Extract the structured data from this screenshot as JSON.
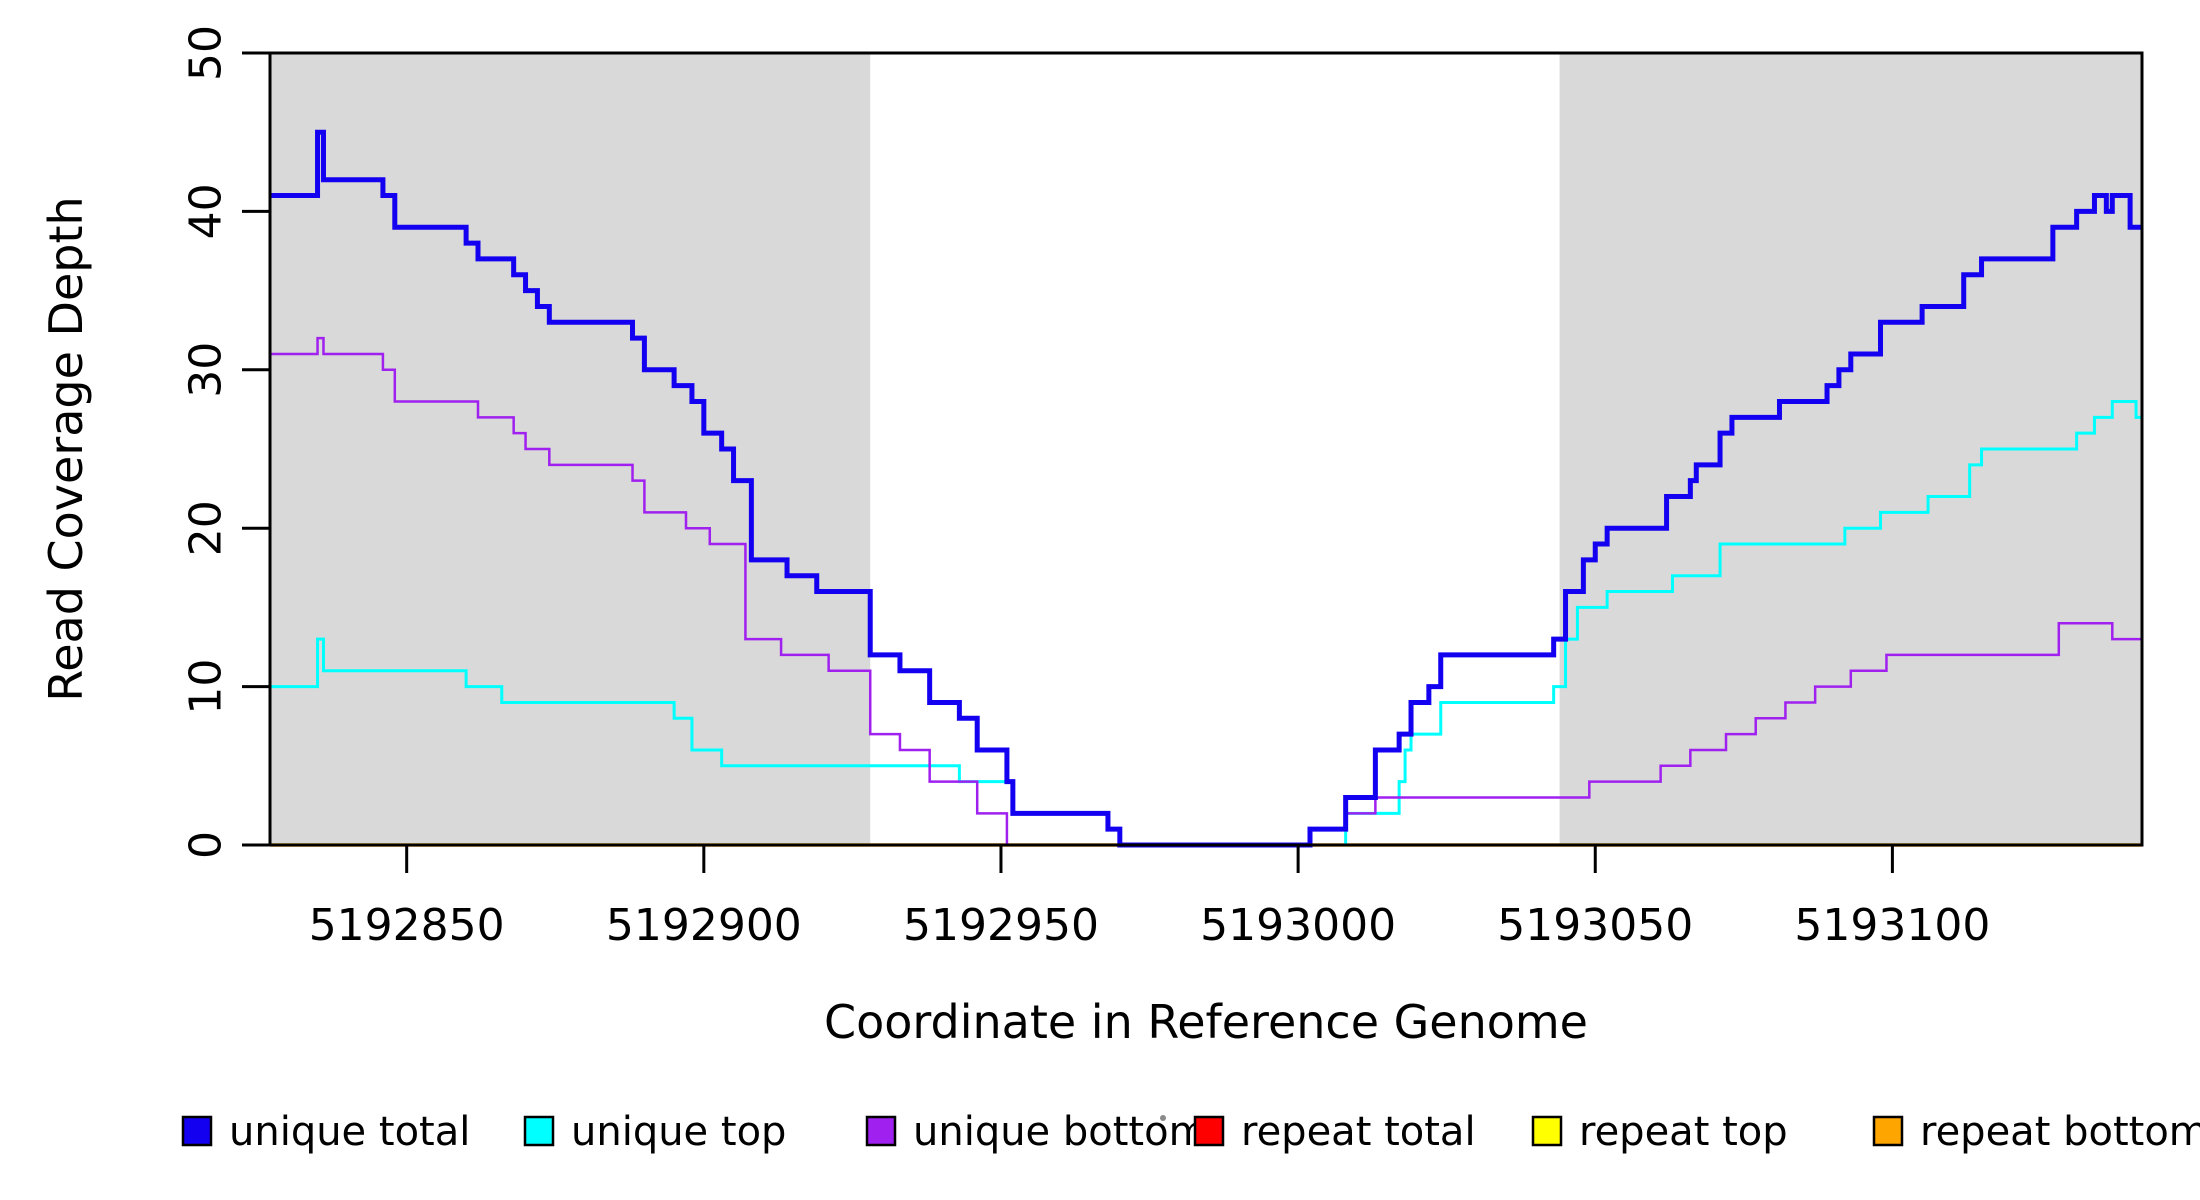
{
  "chart_data": {
    "type": "step-line",
    "title": "",
    "xlabel": "Coordinate in Reference Genome",
    "ylabel": "Read Coverage Depth",
    "x_range": [
      5192827,
      5193142
    ],
    "y_range": [
      0,
      50
    ],
    "x_ticks": [
      5192850,
      5192900,
      5192950,
      5193000,
      5193050,
      5193100
    ],
    "y_ticks": [
      0,
      10,
      20,
      30,
      40,
      50
    ],
    "grid": false,
    "legend_position": "bottom",
    "background_color": "#ffffff",
    "shaded_regions": [
      {
        "x_from": 5192827,
        "x_to": 5192928,
        "color": "#d9d9d9"
      },
      {
        "x_from": 5193044,
        "x_to": 5193142,
        "color": "#d9d9d9"
      }
    ],
    "series": [
      {
        "name": "repeat total",
        "color": "#ff0000",
        "line_width": 2.5,
        "points": [
          [
            5192827,
            0
          ]
        ]
      },
      {
        "name": "repeat top",
        "color": "#ffff00",
        "line_width": 2.5,
        "points": [
          [
            5192827,
            0
          ]
        ]
      },
      {
        "name": "repeat bottom",
        "color": "#ffa500",
        "line_width": 3.5,
        "points": [
          [
            5192827,
            0
          ]
        ]
      },
      {
        "name": "unique top",
        "color": "#00ffff",
        "line_width": 3,
        "points": [
          [
            5192827,
            10
          ],
          [
            5192835,
            13
          ],
          [
            5192836,
            11
          ],
          [
            5192860,
            10
          ],
          [
            5192866,
            9
          ],
          [
            5192895,
            8
          ],
          [
            5192898,
            6
          ],
          [
            5192903,
            5
          ],
          [
            5192943,
            4
          ],
          [
            5192952,
            2
          ],
          [
            5192968,
            1
          ],
          [
            5192970,
            0
          ],
          [
            5193008,
            2
          ],
          [
            5193017,
            4
          ],
          [
            5193018,
            6
          ],
          [
            5193019,
            7
          ],
          [
            5193024,
            9
          ],
          [
            5193043,
            10
          ],
          [
            5193045,
            13
          ],
          [
            5193047,
            15
          ],
          [
            5193052,
            16
          ],
          [
            5193063,
            17
          ],
          [
            5193071,
            19
          ],
          [
            5193092,
            20
          ],
          [
            5193098,
            21
          ],
          [
            5193106,
            22
          ],
          [
            5193113,
            24
          ],
          [
            5193115,
            25
          ],
          [
            5193131,
            26
          ],
          [
            5193134,
            27
          ],
          [
            5193137,
            28
          ],
          [
            5193141,
            27
          ]
        ]
      },
      {
        "name": "unique bottom",
        "color": "#a020f0",
        "line_width": 2.5,
        "points": [
          [
            5192827,
            31
          ],
          [
            5192835,
            32
          ],
          [
            5192836,
            31
          ],
          [
            5192846,
            30
          ],
          [
            5192848,
            28
          ],
          [
            5192862,
            27
          ],
          [
            5192868,
            26
          ],
          [
            5192870,
            25
          ],
          [
            5192874,
            24
          ],
          [
            5192888,
            23
          ],
          [
            5192890,
            21
          ],
          [
            5192897,
            20
          ],
          [
            5192901,
            19
          ],
          [
            5192907,
            13
          ],
          [
            5192913,
            12
          ],
          [
            5192921,
            11
          ],
          [
            5192928,
            7
          ],
          [
            5192933,
            6
          ],
          [
            5192938,
            4
          ],
          [
            5192946,
            2
          ],
          [
            5192951,
            0
          ],
          [
            5193002,
            1
          ],
          [
            5193008,
            2
          ],
          [
            5193013,
            3
          ],
          [
            5193049,
            4
          ],
          [
            5193061,
            5
          ],
          [
            5193066,
            6
          ],
          [
            5193072,
            7
          ],
          [
            5193077,
            8
          ],
          [
            5193082,
            9
          ],
          [
            5193087,
            10
          ],
          [
            5193093,
            11
          ],
          [
            5193099,
            12
          ],
          [
            5193128,
            14
          ],
          [
            5193137,
            13
          ]
        ]
      },
      {
        "name": "unique total",
        "color": "#1400f0",
        "line_width": 5,
        "points": [
          [
            5192827,
            41
          ],
          [
            5192835,
            45
          ],
          [
            5192836,
            42
          ],
          [
            5192846,
            41
          ],
          [
            5192848,
            39
          ],
          [
            5192860,
            38
          ],
          [
            5192862,
            37
          ],
          [
            5192868,
            36
          ],
          [
            5192870,
            35
          ],
          [
            5192872,
            34
          ],
          [
            5192874,
            33
          ],
          [
            5192888,
            32
          ],
          [
            5192890,
            30
          ],
          [
            5192895,
            29
          ],
          [
            5192898,
            28
          ],
          [
            5192900,
            26
          ],
          [
            5192903,
            25
          ],
          [
            5192905,
            23
          ],
          [
            5192908,
            18
          ],
          [
            5192914,
            17
          ],
          [
            5192919,
            16
          ],
          [
            5192928,
            12
          ],
          [
            5192933,
            11
          ],
          [
            5192938,
            9
          ],
          [
            5192943,
            8
          ],
          [
            5192946,
            6
          ],
          [
            5192951,
            4
          ],
          [
            5192952,
            2
          ],
          [
            5192968,
            1
          ],
          [
            5192970,
            0
          ],
          [
            5193002,
            1
          ],
          [
            5193008,
            3
          ],
          [
            5193013,
            6
          ],
          [
            5193017,
            7
          ],
          [
            5193019,
            9
          ],
          [
            5193022,
            10
          ],
          [
            5193024,
            12
          ],
          [
            5193043,
            13
          ],
          [
            5193045,
            16
          ],
          [
            5193048,
            18
          ],
          [
            5193050,
            19
          ],
          [
            5193052,
            20
          ],
          [
            5193062,
            22
          ],
          [
            5193066,
            23
          ],
          [
            5193067,
            24
          ],
          [
            5193071,
            26
          ],
          [
            5193073,
            27
          ],
          [
            5193081,
            28
          ],
          [
            5193089,
            29
          ],
          [
            5193091,
            30
          ],
          [
            5193093,
            31
          ],
          [
            5193098,
            33
          ],
          [
            5193105,
            34
          ],
          [
            5193112,
            36
          ],
          [
            5193115,
            37
          ],
          [
            5193127,
            39
          ],
          [
            5193131,
            40
          ],
          [
            5193134,
            41
          ],
          [
            5193136,
            40
          ],
          [
            5193137,
            41
          ],
          [
            5193140,
            39
          ]
        ]
      }
    ],
    "legend_items": [
      {
        "label": "unique total",
        "color": "#1400f0"
      },
      {
        "label": "unique top",
        "color": "#00ffff"
      },
      {
        "label": "unique bottom",
        "color": "#a020f0"
      },
      {
        "label": "repeat total",
        "color": "#ff0000"
      },
      {
        "label": "repeat top",
        "color": "#ffff00"
      },
      {
        "label": "repeat bottom",
        "color": "#ffa500"
      }
    ],
    "stray_dot": {
      "x": 1163,
      "y": 1118
    }
  }
}
